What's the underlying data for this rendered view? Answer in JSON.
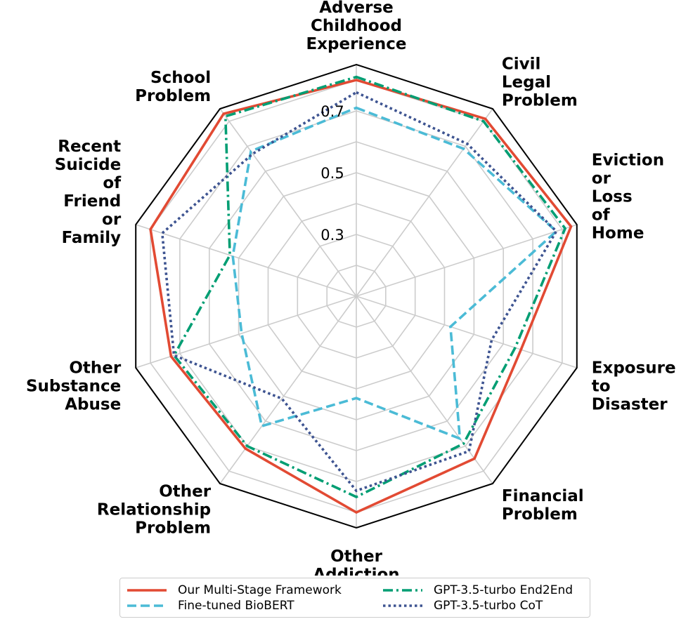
{
  "chart_data": {
    "type": "radar",
    "categories": [
      "Adverse Childhood Experience",
      "Civil Legal Problem",
      "Eviction or Loss of Home",
      "Exposure to Disaster",
      "Financial Problem",
      "Other Addiction",
      "Other Relationship Problem",
      "Other Substance Abuse",
      "Recent Suicide of Friend or Family",
      "School Problem"
    ],
    "category_lines": [
      [
        "Adverse",
        "Childhood",
        "Experience"
      ],
      [
        "Civil",
        "Legal",
        "Problem"
      ],
      [
        "Eviction",
        "or",
        "Loss",
        "of",
        "Home"
      ],
      [
        "Exposure",
        "to",
        "Disaster"
      ],
      [
        "Financial",
        "Problem"
      ],
      [
        "Other",
        "Addiction"
      ],
      [
        "Other",
        "Relationship",
        "Problem"
      ],
      [
        "Other",
        "Substance",
        "Abuse"
      ],
      [
        "Recent",
        "Suicide",
        "of",
        "Friend",
        "or",
        "Family"
      ],
      [
        "School",
        "Problem"
      ]
    ],
    "ticks": [
      0.3,
      0.5,
      0.7
    ],
    "tick_labels": [
      "0.3",
      "0.5",
      "0.7"
    ],
    "gridlines": [
      0.2,
      0.3,
      0.4,
      0.5,
      0.6,
      0.7,
      0.8
    ],
    "rlim": [
      0.1,
      0.85
    ],
    "grid": true,
    "legend_position": "bottom",
    "series": [
      {
        "name": "Our Multi-Stage Framework",
        "color": "#e24a33",
        "dash": "solid",
        "values": [
          0.8,
          0.81,
          0.83,
          0.66,
          0.75,
          0.8,
          0.71,
          0.73,
          0.8,
          0.83
        ]
      },
      {
        "name": "Fine-tuned BioBERT",
        "color": "#4bbbd6",
        "dash": "dashed",
        "values": [
          0.71,
          0.69,
          0.78,
          0.42,
          0.67,
          0.43,
          0.62,
          0.49,
          0.52,
          0.68
        ]
      },
      {
        "name": "GPT-3.5-turbo End2End",
        "color": "#009e73",
        "dash": "dashdot",
        "values": [
          0.81,
          0.8,
          0.81,
          0.64,
          0.69,
          0.75,
          0.7,
          0.72,
          0.53,
          0.82
        ]
      },
      {
        "name": "GPT-3.5-turbo CoT",
        "color": "#3e5491",
        "dash": "dotted",
        "values": [
          0.76,
          0.71,
          0.78,
          0.56,
          0.72,
          0.73,
          0.51,
          0.72,
          0.76,
          0.67
        ]
      }
    ]
  }
}
